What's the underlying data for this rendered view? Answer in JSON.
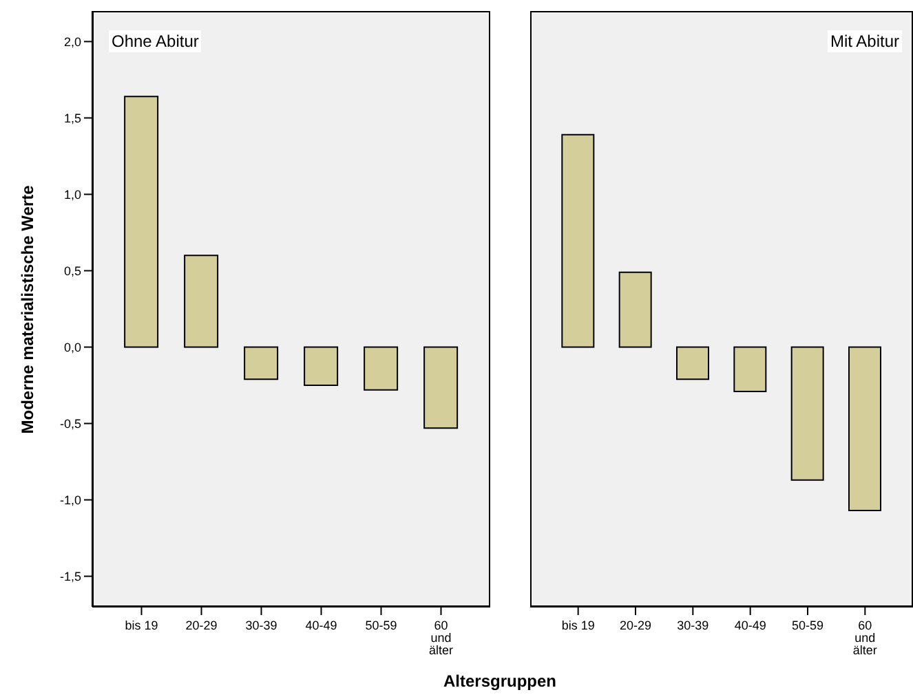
{
  "chart_data": [
    {
      "type": "bar",
      "title": "Ohne Abitur",
      "ylabel": "Moderne materialistische Werte",
      "xlabel": "Altersgruppen",
      "categories": [
        "bis 19",
        "20-29",
        "30-39",
        "40-49",
        "50-59",
        "60 und älter"
      ],
      "values": [
        1.64,
        0.6,
        -0.21,
        -0.25,
        -0.28,
        -0.53
      ],
      "color": "#d4cf9a",
      "ylim": [
        -1.7,
        2.2
      ],
      "yticks": [
        {
          "value": 2,
          "label": "2,0"
        },
        {
          "value": 1.5,
          "label": "1,5"
        },
        {
          "value": 1,
          "label": "1,0"
        },
        {
          "value": 0.5,
          "label": "0,5"
        },
        {
          "value": 0,
          "label": "0,0"
        },
        {
          "value": -0.5,
          "label": "-0,5"
        },
        {
          "value": -1,
          "label": "-1,0"
        },
        {
          "value": -1.5,
          "label": "-1,5"
        }
      ],
      "grid": false,
      "legend": false
    },
    {
      "type": "bar",
      "title": "Mit Abitur",
      "categories": [
        "bis 19",
        "20-29",
        "30-39",
        "40-49",
        "50-59",
        "60 und älter"
      ],
      "values": [
        1.39,
        0.49,
        -0.21,
        -0.29,
        -0.87,
        -1.07
      ],
      "color": "#d4cf9a",
      "ylim": [
        -1.7,
        2.2
      ],
      "tick_labels": "x",
      "grid": false,
      "legend": false
    }
  ]
}
